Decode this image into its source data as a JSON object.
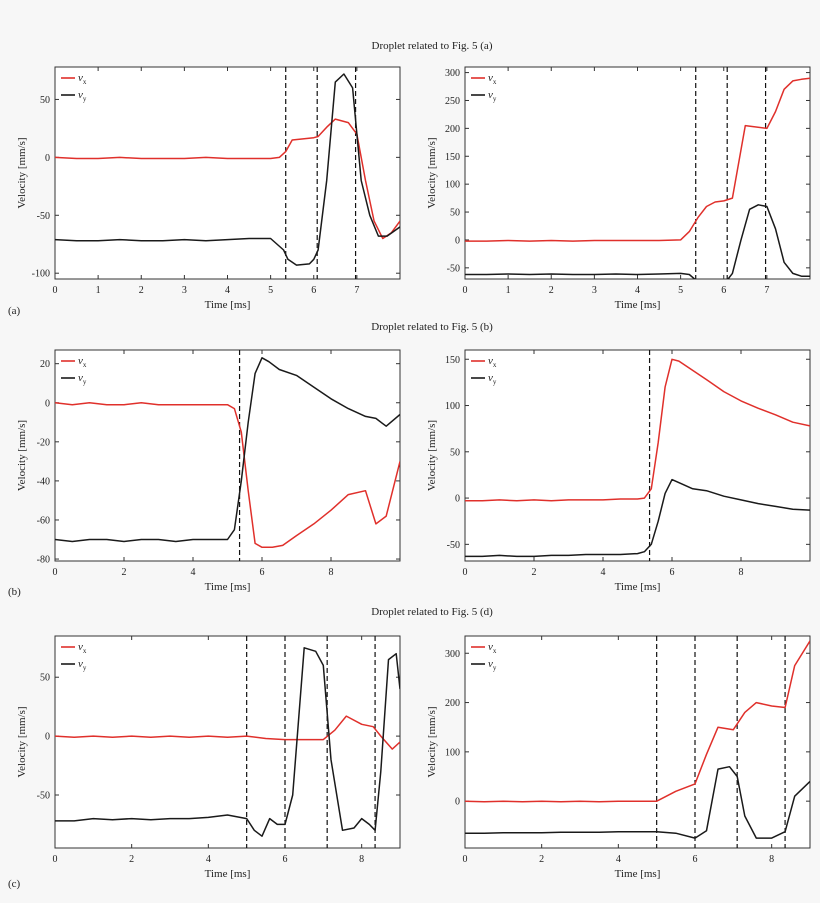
{
  "figure": {
    "rows": [
      {
        "heading": "Droplet related to Fig. 5 (a)",
        "panel_label": "(a)"
      },
      {
        "heading": "Droplet related to Fig. 5 (b)",
        "panel_label": "(b)"
      },
      {
        "heading": "Droplet related to Fig. 5 (d)",
        "panel_label": "(c)"
      }
    ],
    "xlabel": "Time [ms]",
    "ylabel": "Velocity [mm/s]",
    "legend": [
      {
        "symbol": "v",
        "subscript": "x",
        "color": "#e0302b"
      },
      {
        "symbol": "v",
        "subscript": "y",
        "color": "#1a1a1a"
      }
    ]
  },
  "chart_data": [
    {
      "type": "line",
      "grid": false,
      "legend_position": "top-left",
      "xlabel": "Time [ms]",
      "ylabel": "Velocity [mm/s]",
      "xlim": [
        0,
        8
      ],
      "ylim": [
        -105,
        78
      ],
      "xticks": [
        0,
        1,
        2,
        3,
        4,
        5,
        6,
        7
      ],
      "yticks": [
        -100,
        -50,
        0,
        50
      ],
      "vlines": [
        5.35,
        6.08,
        6.97
      ],
      "series": [
        {
          "name": "vx",
          "color": "#e0302b",
          "x": [
            0,
            0.5,
            1,
            1.5,
            2,
            2.5,
            3,
            3.5,
            4,
            4.5,
            5,
            5.2,
            5.35,
            5.5,
            6,
            6.1,
            6.3,
            6.5,
            6.8,
            7,
            7.2,
            7.4,
            7.6,
            7.8,
            8
          ],
          "y": [
            0,
            -1,
            -1,
            0,
            -1,
            -1,
            -1,
            0,
            -1,
            -1,
            -1,
            0,
            5,
            15,
            17,
            18,
            26,
            33,
            30,
            20,
            -20,
            -55,
            -70,
            -65,
            -55
          ]
        },
        {
          "name": "vy",
          "color": "#1a1a1a",
          "x": [
            0,
            0.5,
            1,
            1.5,
            2,
            2.5,
            3,
            3.5,
            4,
            4.5,
            5,
            5.3,
            5.4,
            5.6,
            5.9,
            6,
            6.1,
            6.3,
            6.5,
            6.7,
            6.9,
            7.1,
            7.3,
            7.5,
            7.7,
            8
          ],
          "y": [
            -71,
            -72,
            -72,
            -71,
            -72,
            -72,
            -71,
            -72,
            -71,
            -70,
            -70,
            -80,
            -88,
            -93,
            -92,
            -88,
            -80,
            -20,
            65,
            72,
            60,
            -20,
            -50,
            -68,
            -68,
            -60
          ]
        }
      ]
    },
    {
      "type": "line",
      "grid": false,
      "legend_position": "top-left",
      "xlabel": "Time [ms]",
      "ylabel": "Velocity [mm/s]",
      "xlim": [
        0,
        8
      ],
      "ylim": [
        -70,
        310
      ],
      "xticks": [
        0,
        1,
        2,
        3,
        4,
        5,
        6,
        7
      ],
      "yticks": [
        -50,
        0,
        50,
        100,
        150,
        200,
        250,
        300
      ],
      "vlines": [
        5.35,
        6.08,
        6.97
      ],
      "series": [
        {
          "name": "vx",
          "color": "#e0302b",
          "x": [
            0,
            0.5,
            1,
            1.5,
            2,
            2.5,
            3,
            3.5,
            4,
            4.5,
            5,
            5.2,
            5.4,
            5.6,
            5.8,
            6,
            6.2,
            6.5,
            7,
            7.2,
            7.4,
            7.6,
            7.8,
            8
          ],
          "y": [
            -2,
            -2,
            -1,
            -2,
            -1,
            -2,
            -1,
            -1,
            -1,
            -1,
            0,
            15,
            40,
            60,
            68,
            70,
            75,
            205,
            200,
            230,
            270,
            285,
            288,
            290
          ]
        },
        {
          "name": "vy",
          "color": "#1a1a1a",
          "x": [
            0,
            0.5,
            1,
            1.5,
            2,
            2.5,
            3,
            3.5,
            4,
            4.5,
            5,
            5.2,
            5.4,
            5.6,
            5.8,
            6,
            6.2,
            6.4,
            6.6,
            6.8,
            7,
            7.2,
            7.4,
            7.6,
            7.8,
            8
          ],
          "y": [
            -62,
            -62,
            -61,
            -62,
            -61,
            -62,
            -62,
            -61,
            -62,
            -61,
            -60,
            -62,
            -75,
            -82,
            -83,
            -80,
            -60,
            0,
            55,
            63,
            60,
            20,
            -40,
            -60,
            -65,
            -65
          ]
        }
      ]
    },
    {
      "type": "line",
      "grid": false,
      "legend_position": "top-left",
      "xlabel": "Time [ms]",
      "ylabel": "Velocity [mm/s]",
      "xlim": [
        0,
        10
      ],
      "ylim": [
        -81,
        27
      ],
      "xticks": [
        0,
        2,
        4,
        6,
        8
      ],
      "yticks": [
        -80,
        -60,
        -40,
        -20,
        0,
        20
      ],
      "vlines": [
        5.35
      ],
      "series": [
        {
          "name": "vx",
          "color": "#e0302b",
          "x": [
            0,
            0.5,
            1,
            1.5,
            2,
            2.5,
            3,
            3.5,
            4,
            4.5,
            5,
            5.2,
            5.4,
            5.6,
            5.8,
            6,
            6.3,
            6.6,
            7,
            7.5,
            8,
            8.5,
            9,
            9.3,
            9.6,
            10
          ],
          "y": [
            0,
            -1,
            0,
            -1,
            -1,
            0,
            -1,
            -1,
            -1,
            -1,
            -1,
            -3,
            -15,
            -45,
            -72,
            -74,
            -74,
            -73,
            -68,
            -62,
            -55,
            -47,
            -45,
            -62,
            -58,
            -30
          ]
        },
        {
          "name": "vy",
          "color": "#1a1a1a",
          "x": [
            0,
            0.5,
            1,
            1.5,
            2,
            2.5,
            3,
            3.5,
            4,
            4.5,
            5,
            5.2,
            5.4,
            5.6,
            5.8,
            6,
            6.2,
            6.5,
            7,
            7.5,
            8,
            8.5,
            9,
            9.3,
            9.6,
            10
          ],
          "y": [
            -70,
            -71,
            -70,
            -70,
            -71,
            -70,
            -70,
            -71,
            -70,
            -70,
            -70,
            -65,
            -40,
            -10,
            15,
            23,
            21,
            17,
            14,
            8,
            2,
            -3,
            -7,
            -8,
            -12,
            -6
          ]
        }
      ]
    },
    {
      "type": "line",
      "grid": false,
      "legend_position": "top-left",
      "xlabel": "Time [ms]",
      "ylabel": "Velocity [mm/s]",
      "xlim": [
        0,
        10
      ],
      "ylim": [
        -68,
        160
      ],
      "xticks": [
        0,
        2,
        4,
        6,
        8
      ],
      "yticks": [
        -50,
        0,
        50,
        100,
        150
      ],
      "vlines": [
        5.35
      ],
      "series": [
        {
          "name": "vx",
          "color": "#e0302b",
          "x": [
            0,
            0.5,
            1,
            1.5,
            2,
            2.5,
            3,
            3.5,
            4,
            4.5,
            5,
            5.2,
            5.4,
            5.6,
            5.8,
            6,
            6.2,
            6.6,
            7,
            7.5,
            8,
            8.5,
            9,
            9.5,
            10
          ],
          "y": [
            -3,
            -3,
            -2,
            -3,
            -2,
            -3,
            -2,
            -2,
            -2,
            -1,
            -1,
            0,
            10,
            60,
            120,
            150,
            148,
            138,
            128,
            115,
            105,
            97,
            90,
            82,
            78
          ]
        },
        {
          "name": "vy",
          "color": "#1a1a1a",
          "x": [
            0,
            0.5,
            1,
            1.5,
            2,
            2.5,
            3,
            3.5,
            4,
            4.5,
            5,
            5.2,
            5.4,
            5.6,
            5.8,
            6,
            6.3,
            6.6,
            7,
            7.5,
            8,
            8.5,
            9,
            9.5,
            10
          ],
          "y": [
            -63,
            -63,
            -62,
            -63,
            -63,
            -62,
            -62,
            -61,
            -61,
            -61,
            -60,
            -58,
            -50,
            -25,
            5,
            20,
            15,
            10,
            8,
            2,
            -2,
            -6,
            -9,
            -12,
            -13
          ]
        }
      ]
    },
    {
      "type": "line",
      "grid": false,
      "legend_position": "top-left",
      "xlabel": "Time [ms]",
      "ylabel": "Velocity [mm/s]",
      "xlim": [
        0,
        9
      ],
      "ylim": [
        -95,
        85
      ],
      "xticks": [
        0,
        2,
        4,
        6,
        8
      ],
      "yticks": [
        -50,
        0,
        50
      ],
      "vlines": [
        5.0,
        6.0,
        7.1,
        8.35
      ],
      "series": [
        {
          "name": "vx",
          "color": "#e0302b",
          "x": [
            0,
            0.5,
            1,
            1.5,
            2,
            2.5,
            3,
            3.5,
            4,
            4.5,
            5,
            5.5,
            6,
            6.5,
            7,
            7.3,
            7.6,
            8,
            8.3,
            8.5,
            8.8,
            9
          ],
          "y": [
            0,
            -1,
            0,
            -1,
            0,
            -1,
            0,
            -1,
            0,
            -1,
            0,
            -2,
            -3,
            -3,
            -3,
            5,
            17,
            10,
            8,
            0,
            -11,
            -5
          ]
        },
        {
          "name": "vy",
          "color": "#1a1a1a",
          "x": [
            0,
            0.5,
            1,
            1.5,
            2,
            2.5,
            3,
            3.5,
            4,
            4.5,
            5,
            5.2,
            5.4,
            5.6,
            5.8,
            6,
            6.2,
            6.5,
            6.8,
            7,
            7.2,
            7.5,
            7.8,
            8,
            8.2,
            8.35,
            8.5,
            8.7,
            8.9,
            9
          ],
          "y": [
            -72,
            -72,
            -70,
            -71,
            -70,
            -71,
            -70,
            -70,
            -69,
            -67,
            -70,
            -80,
            -85,
            -70,
            -75,
            -75,
            -50,
            75,
            72,
            60,
            -20,
            -80,
            -78,
            -70,
            -75,
            -80,
            -30,
            65,
            70,
            40
          ]
        }
      ]
    },
    {
      "type": "line",
      "grid": false,
      "legend_position": "top-left",
      "xlabel": "Time [ms]",
      "ylabel": "Velocity [mm/s]",
      "xlim": [
        0,
        9
      ],
      "ylim": [
        -95,
        335
      ],
      "xticks": [
        0,
        2,
        4,
        6,
        8
      ],
      "yticks": [
        0,
        100,
        200,
        300
      ],
      "vlines": [
        5.0,
        6.0,
        7.1,
        8.35
      ],
      "series": [
        {
          "name": "vx",
          "color": "#e0302b",
          "x": [
            0,
            0.5,
            1,
            1.5,
            2,
            2.5,
            3,
            3.5,
            4,
            4.5,
            5,
            5.5,
            6,
            6.3,
            6.6,
            7,
            7.3,
            7.6,
            8,
            8.35,
            8.6,
            9
          ],
          "y": [
            0,
            -1,
            0,
            -1,
            0,
            -1,
            0,
            -1,
            0,
            0,
            0,
            20,
            35,
            95,
            150,
            145,
            180,
            200,
            193,
            190,
            275,
            325
          ]
        },
        {
          "name": "vy",
          "color": "#1a1a1a",
          "x": [
            0,
            0.5,
            1,
            1.5,
            2,
            2.5,
            3,
            3.5,
            4,
            4.5,
            5,
            5.5,
            6,
            6.3,
            6.6,
            6.9,
            7.1,
            7.3,
            7.6,
            8,
            8.35,
            8.6,
            9
          ],
          "y": [
            -65,
            -65,
            -64,
            -64,
            -64,
            -63,
            -63,
            -63,
            -62,
            -62,
            -62,
            -65,
            -75,
            -60,
            65,
            70,
            50,
            -30,
            -75,
            -75,
            -62,
            10,
            40
          ]
        }
      ]
    }
  ]
}
